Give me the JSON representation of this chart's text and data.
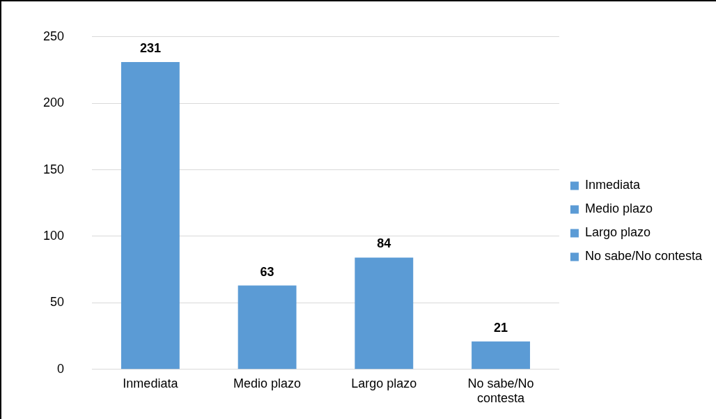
{
  "chart_data": {
    "type": "bar",
    "categories": [
      "Inmediata",
      "Medio plazo",
      "Largo plazo",
      "No sabe/No contesta"
    ],
    "series": [
      {
        "name": "Inmediata",
        "color": "#5b9bd5",
        "values": [
          231,
          null,
          null,
          null
        ]
      },
      {
        "name": "Medio plazo",
        "color": "#5b9bd5",
        "values": [
          null,
          63,
          null,
          null
        ]
      },
      {
        "name": "Largo plazo",
        "color": "#5b9bd5",
        "values": [
          null,
          null,
          84,
          null
        ]
      },
      {
        "name": "No sabe/No contesta",
        "color": "#5b9bd5",
        "values": [
          null,
          null,
          null,
          21
        ]
      }
    ],
    "ylim": [
      0,
      250
    ],
    "yticks": [
      0,
      50,
      100,
      150,
      200,
      250
    ],
    "grid": "y",
    "legend": "right",
    "data_labels": true
  }
}
